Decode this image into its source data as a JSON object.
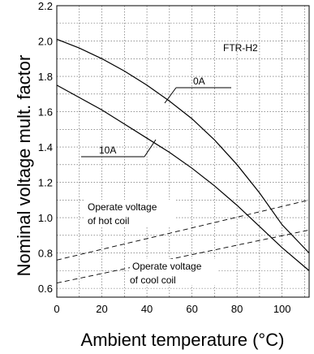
{
  "chart_data": {
    "type": "line",
    "title": "",
    "xlabel": "Ambient temperature (°C)",
    "ylabel": "Nominal voltage mult. factor",
    "xlim": [
      0,
      112
    ],
    "ylim": [
      0.55,
      2.2
    ],
    "x_ticks": [
      "0",
      "20",
      "40",
      "60",
      "80",
      "100"
    ],
    "y_ticks": [
      "0.6",
      "0.8",
      "1.0",
      "1.2",
      "1.4",
      "1.6",
      "1.8",
      "2.0",
      "2.2"
    ],
    "grid": true,
    "model_label": "FTR-H2",
    "series": [
      {
        "name": "0A",
        "style": "solid",
        "x": [
          0,
          10,
          20,
          30,
          40,
          50,
          60,
          70,
          80,
          90,
          100,
          112
        ],
        "y": [
          2.01,
          1.96,
          1.9,
          1.83,
          1.75,
          1.66,
          1.56,
          1.44,
          1.3,
          1.14,
          0.96,
          0.8
        ]
      },
      {
        "name": "10A",
        "style": "solid",
        "x": [
          0,
          10,
          20,
          30,
          40,
          50,
          60,
          70,
          80,
          90,
          100,
          112
        ],
        "y": [
          1.75,
          1.68,
          1.61,
          1.53,
          1.45,
          1.37,
          1.28,
          1.18,
          1.07,
          0.95,
          0.83,
          0.7
        ]
      },
      {
        "name": "Operate voltage of hot coil",
        "style": "dashed",
        "x": [
          0,
          112
        ],
        "y": [
          0.76,
          1.1
        ]
      },
      {
        "name": "Operate voltage of cool coil",
        "style": "dashed",
        "x": [
          0,
          112
        ],
        "y": [
          0.63,
          0.93
        ]
      }
    ],
    "annotations": [
      {
        "text": "0A",
        "series": "0A"
      },
      {
        "text": "10A",
        "series": "10A"
      },
      {
        "lines": [
          "Operate voltage",
          "of hot coil"
        ]
      },
      {
        "lines": [
          "Operate voltage",
          "of cool coil"
        ]
      }
    ]
  }
}
